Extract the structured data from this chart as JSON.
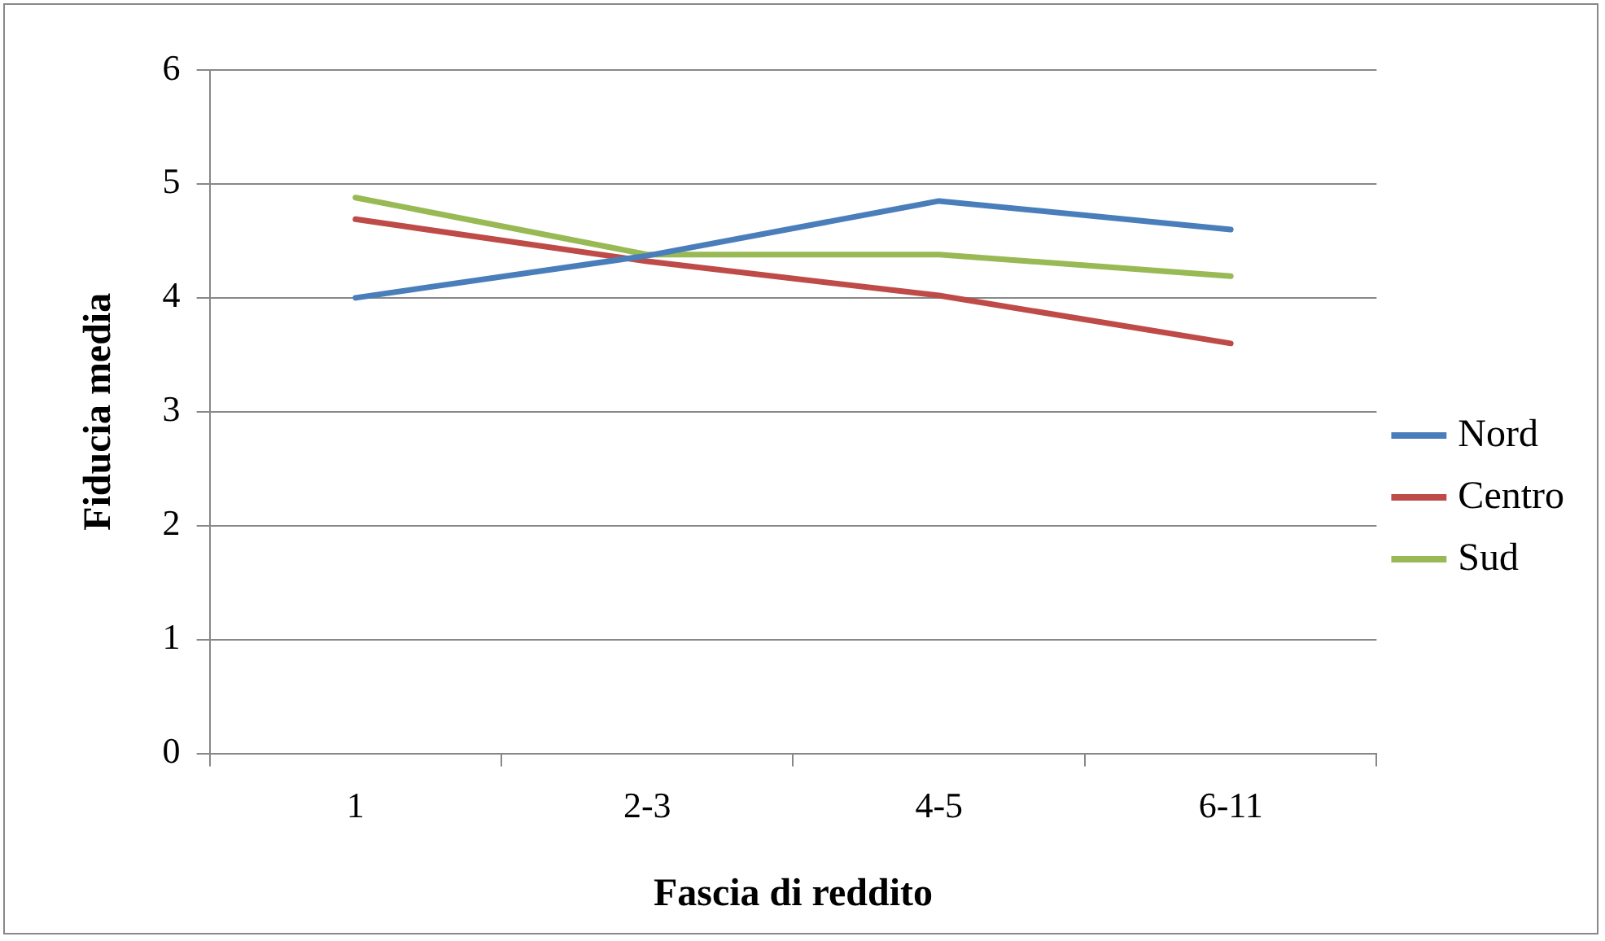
{
  "chart_data": {
    "type": "line",
    "xlabel": "Fascia di reddito",
    "ylabel": "Fiducia media",
    "categories": [
      "1",
      "2-3",
      "4-5",
      "6-11"
    ],
    "series": [
      {
        "name": "Nord",
        "color": "#4a7ebb",
        "values": [
          4.0,
          4.37,
          4.85,
          4.6
        ]
      },
      {
        "name": "Centro",
        "color": "#be4b48",
        "values": [
          4.69,
          4.32,
          4.02,
          3.6
        ]
      },
      {
        "name": "Sud",
        "color": "#98b954",
        "values": [
          4.88,
          4.38,
          4.38,
          4.19
        ]
      }
    ],
    "ylim": [
      0,
      6
    ],
    "yticks": [
      0,
      1,
      2,
      3,
      4,
      5,
      6
    ],
    "grid": "y",
    "legend": "right",
    "marker": "none",
    "line_style": "solid"
  }
}
